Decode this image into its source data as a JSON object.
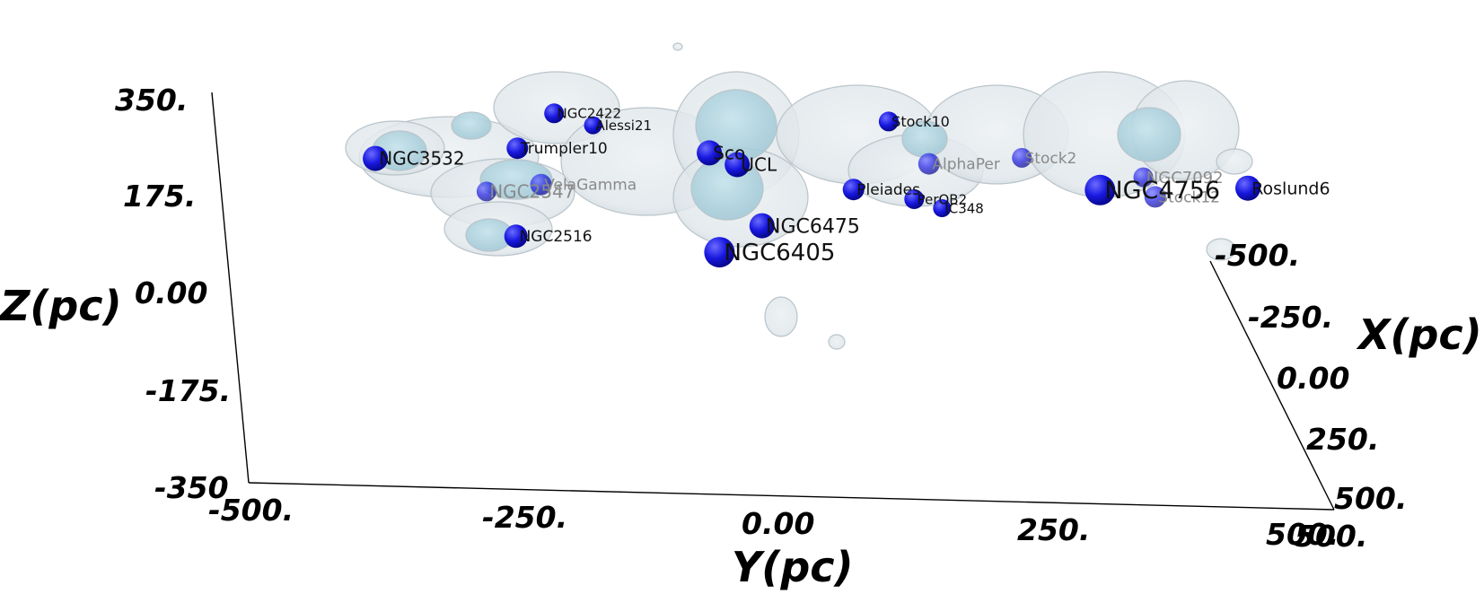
{
  "chart_data": {
    "type": "scatter",
    "projection": "3d",
    "axes": {
      "x": {
        "label": "X(pc)",
        "ticks": [
          "-500.",
          "-250.",
          "0.00",
          "250.",
          "500."
        ],
        "range": [
          -500,
          500
        ]
      },
      "y": {
        "label": "Y(pc)",
        "ticks": [
          "-500.",
          "-250.",
          "0.00",
          "250.",
          "500."
        ],
        "range": [
          -500,
          500
        ]
      },
      "z": {
        "label": "Z(pc)",
        "ticks": [
          "350.",
          "175.",
          "0.00",
          "-175.",
          "-350"
        ],
        "range": [
          -350,
          350
        ]
      }
    },
    "point_color": "#1515e8",
    "surface_colors": {
      "outer": "#e6ebee",
      "mid": "#d3dde2",
      "inner": "#b7d6e0"
    },
    "clusters": [
      {
        "name": "NGC3532",
        "y": -365,
        "z": 240,
        "r": 14,
        "font": 20,
        "faded": false
      },
      {
        "name": "NGC2422",
        "y": -200,
        "z": 330,
        "r": 11,
        "font": 15,
        "faded": false
      },
      {
        "name": "Alessi21",
        "y": -165,
        "z": 310,
        "r": 10,
        "font": 15,
        "faded": false
      },
      {
        "name": "Trumpler10",
        "y": -235,
        "z": 265,
        "r": 12,
        "font": 17,
        "faded": false
      },
      {
        "name": "NGC2547",
        "y": -265,
        "z": 185,
        "r": 11,
        "font": 20,
        "faded": true
      },
      {
        "name": "VelaGamma",
        "y": -215,
        "z": 200,
        "r": 12,
        "font": 17,
        "faded": true
      },
      {
        "name": "Sco",
        "y": -60,
        "z": 265,
        "r": 14,
        "font": 20,
        "faded": false
      },
      {
        "name": "UCL",
        "y": -35,
        "z": 245,
        "r": 14,
        "font": 20,
        "faded": false
      },
      {
        "name": "NGC2516",
        "y": -240,
        "z": 105,
        "r": 13,
        "font": 17,
        "faded": false
      },
      {
        "name": "NGC6475",
        "y": -15,
        "z": 135,
        "r": 14,
        "font": 22,
        "faded": false
      },
      {
        "name": "NGC6405",
        "y": -55,
        "z": 85,
        "r": 17,
        "font": 26,
        "faded": false
      },
      {
        "name": "Stock10",
        "y": 105,
        "z": 330,
        "r": 11,
        "font": 16,
        "faded": false
      },
      {
        "name": "AlphaPer",
        "y": 140,
        "z": 255,
        "r": 12,
        "font": 17,
        "faded": true
      },
      {
        "name": "Stock2",
        "y": 225,
        "z": 270,
        "r": 11,
        "font": 17,
        "faded": true
      },
      {
        "name": "Pleiades",
        "y": 70,
        "z": 205,
        "r": 12,
        "font": 17,
        "faded": false
      },
      {
        "name": "PerOB2",
        "y": 125,
        "z": 190,
        "r": 11,
        "font": 15,
        "faded": false
      },
      {
        "name": "IC348",
        "y": 150,
        "z": 175,
        "r": 10,
        "font": 15,
        "faded": false
      },
      {
        "name": "NGC4756",
        "y": 295,
        "z": 215,
        "r": 17,
        "font": 27,
        "faded": false
      },
      {
        "name": "NGC7092",
        "y": 335,
        "z": 240,
        "r": 11,
        "font": 18,
        "faded": true
      },
      {
        "name": "Stock12",
        "y": 345,
        "z": 205,
        "r": 12,
        "font": 17,
        "faded": true
      },
      {
        "name": "Roslund6",
        "y": 430,
        "z": 225,
        "r": 14,
        "font": 19,
        "faded": false
      }
    ]
  }
}
